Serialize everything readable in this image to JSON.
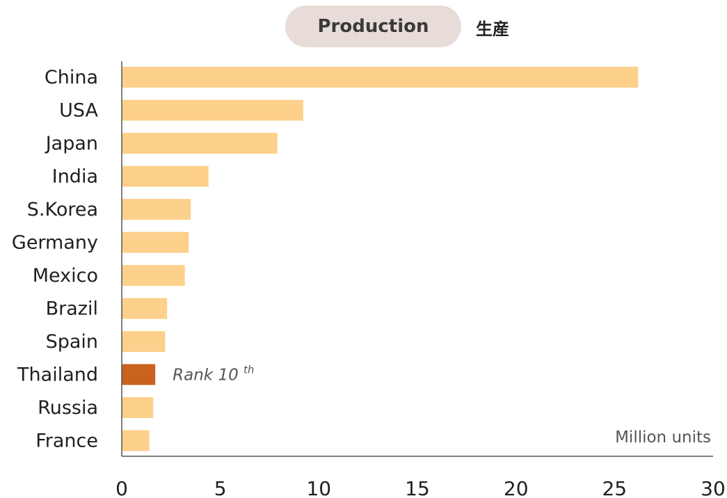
{
  "chart_data": {
    "type": "bar",
    "orientation": "horizontal",
    "title": "Production",
    "subtitle": "生産",
    "unit_label": "Million units",
    "categories": [
      "China",
      "USA",
      "Japan",
      "India",
      "S.Korea",
      "Germany",
      "Mexico",
      "Brazil",
      "Spain",
      "Thailand",
      "Russia",
      "France"
    ],
    "values": [
      26.2,
      9.2,
      7.9,
      4.4,
      3.5,
      3.4,
      3.2,
      2.3,
      2.2,
      1.7,
      1.6,
      1.4
    ],
    "highlight": {
      "category": "Thailand",
      "annotation": "Rank 10",
      "annotation_sup": "th"
    },
    "xlim": [
      0,
      30
    ],
    "xticks": [
      0,
      5,
      10,
      15,
      20,
      25,
      30
    ],
    "grid": false,
    "colors": {
      "bar": "#fdd08b",
      "highlight": "#c8621c",
      "axis": "#555555",
      "text": "#1f1f1f",
      "annotation": "#555555",
      "title_pill": "#e7dcd8"
    }
  }
}
